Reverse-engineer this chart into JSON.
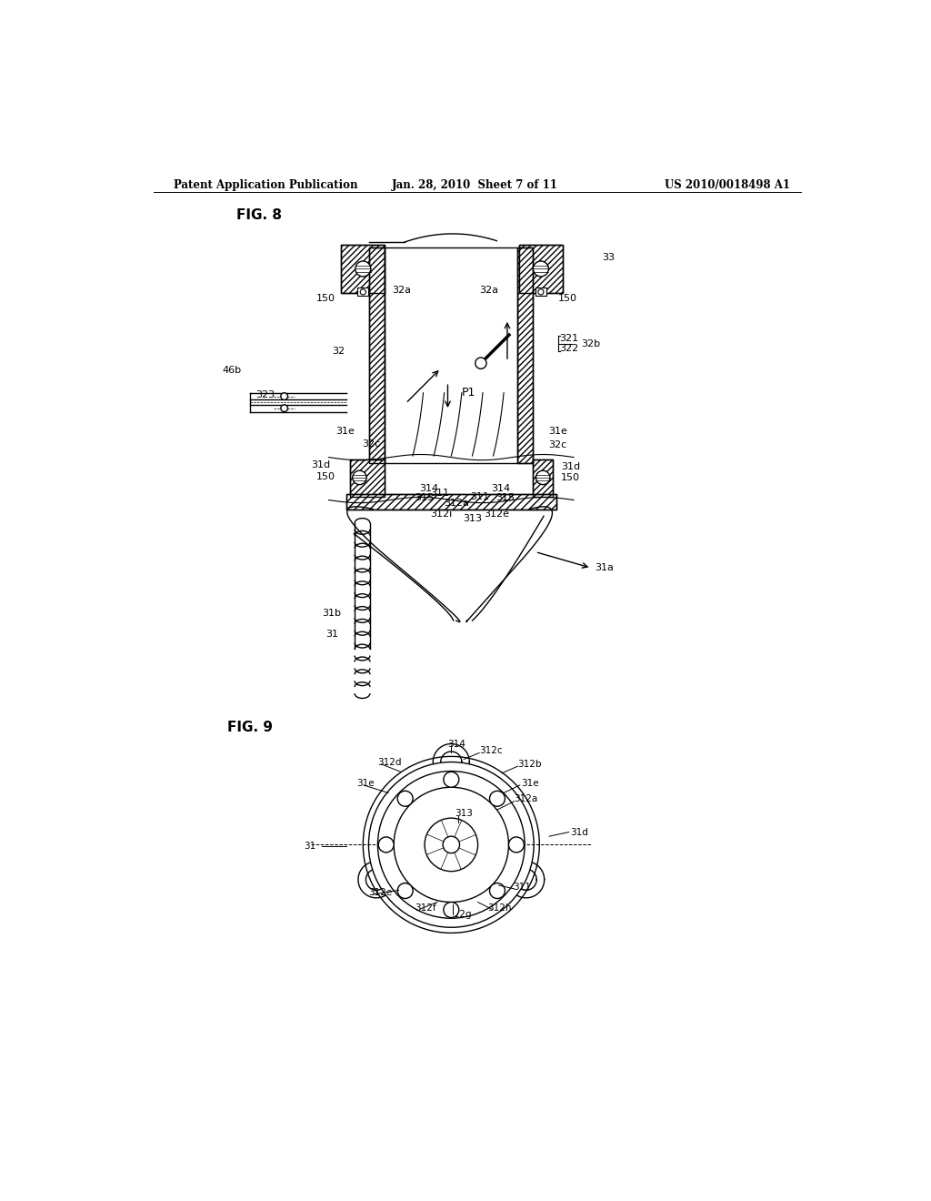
{
  "header_left": "Patent Application Publication",
  "header_mid": "Jan. 28, 2010  Sheet 7 of 11",
  "header_right": "US 2010/0018498 A1",
  "fig8_label": "FIG. 8",
  "fig9_label": "FIG. 9",
  "bg_color": "#ffffff",
  "line_color": "#000000"
}
